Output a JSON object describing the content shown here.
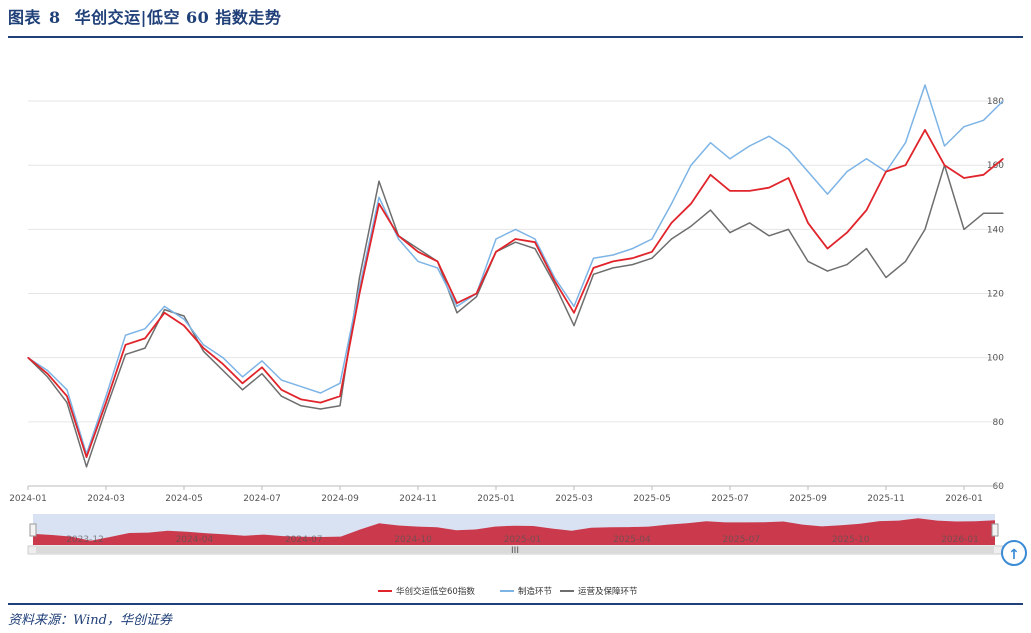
{
  "figure": {
    "label": "图表",
    "number": "8",
    "title": "华创交运|低空 60 指数走势",
    "source": "资料来源：Wind，华创证券"
  },
  "colors": {
    "index": "#e0242b",
    "manufacturing": "#7db4e6",
    "operations": "#6e6e6e",
    "navigator_fill": "#c8283a",
    "navigator_bg": "#d9e2f2",
    "frame": "#1f3f78"
  },
  "navigator": {
    "labels": [
      "2023-12",
      "2024-04",
      "2024-07",
      "2024-10",
      "2025-01",
      "2025-04",
      "2025-07",
      "2025-10",
      "2026-01"
    ],
    "scroll_label": "III"
  },
  "chart_data": {
    "type": "line",
    "x": [
      "2024-01",
      "2024-01",
      "2024-02",
      "2024-02",
      "2024-03",
      "2024-03",
      "2024-04",
      "2024-04",
      "2024-05",
      "2024-05",
      "2024-06",
      "2024-06",
      "2024-07",
      "2024-07",
      "2024-08",
      "2024-08",
      "2024-09",
      "2024-09",
      "2024-10",
      "2024-10",
      "2024-11",
      "2024-11",
      "2024-12",
      "2024-12",
      "2025-01",
      "2025-01",
      "2025-02",
      "2025-02",
      "2025-03",
      "2025-03",
      "2025-04",
      "2025-04",
      "2025-05",
      "2025-05",
      "2025-06",
      "2025-06",
      "2025-07",
      "2025-07",
      "2025-08",
      "2025-08",
      "2025-09",
      "2025-09",
      "2025-10",
      "2025-10",
      "2025-11",
      "2025-11",
      "2025-12",
      "2025-12",
      "2026-01",
      "2026-01",
      "2026-02"
    ],
    "x_ticks": [
      "2024-01",
      "2024-03",
      "2024-05",
      "2024-07",
      "2024-09",
      "2024-11",
      "2025-01",
      "2025-03",
      "2025-05",
      "2025-07",
      "2025-09",
      "2025-11",
      "2026-01"
    ],
    "series": [
      {
        "name": "华创交运低空60指数",
        "color": "#e0242b",
        "values": [
          100,
          95,
          88,
          69,
          86,
          104,
          106,
          114,
          110,
          103,
          98,
          92,
          97,
          90,
          87,
          86,
          88,
          120,
          148,
          138,
          133,
          130,
          117,
          120,
          133,
          137,
          136,
          124,
          114,
          128,
          130,
          131,
          133,
          142,
          148,
          157,
          152,
          152,
          153,
          156,
          142,
          134,
          139,
          146,
          158,
          160,
          171,
          160,
          156,
          157,
          162
        ]
      },
      {
        "name": "制造环节",
        "color": "#7db4e6",
        "values": [
          100,
          96,
          90,
          70,
          88,
          107,
          109,
          116,
          112,
          104,
          100,
          94,
          99,
          93,
          91,
          89,
          92,
          122,
          150,
          137,
          130,
          128,
          116,
          120,
          137,
          140,
          137,
          125,
          116,
          131,
          132,
          134,
          137,
          148,
          160,
          167,
          162,
          166,
          169,
          165,
          158,
          151,
          158,
          162,
          158,
          167,
          185,
          166,
          172,
          174,
          180
        ]
      },
      {
        "name": "运营及保障环节",
        "color": "#6e6e6e",
        "values": [
          100,
          94,
          86,
          66,
          84,
          101,
          103,
          115,
          113,
          102,
          96,
          90,
          95,
          88,
          85,
          84,
          85,
          125,
          155,
          138,
          134,
          130,
          114,
          119,
          133,
          136,
          134,
          123,
          110,
          126,
          128,
          129,
          131,
          137,
          141,
          146,
          139,
          142,
          138,
          140,
          130,
          127,
          129,
          134,
          125,
          130,
          140,
          160,
          140,
          145,
          145
        ]
      }
    ],
    "ylim": [
      60,
      185
    ],
    "yticks": [
      60,
      80,
      100,
      120,
      140,
      160,
      180
    ],
    "grid": true,
    "legend": "bottom-center"
  }
}
